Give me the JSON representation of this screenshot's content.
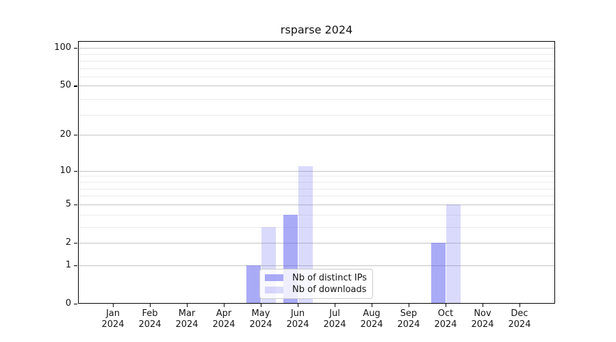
{
  "chart_data": {
    "type": "bar",
    "title": "rsparse 2024",
    "categories": [
      "Jan 2024",
      "Feb 2024",
      "Mar 2024",
      "Apr 2024",
      "May 2024",
      "Jun 2024",
      "Jul 2024",
      "Aug 2024",
      "Sep 2024",
      "Oct 2024",
      "Nov 2024",
      "Dec 2024"
    ],
    "series": [
      {
        "name": "Nb of distinct IPs",
        "values": [
          0,
          0,
          0,
          0,
          1,
          4,
          0,
          0,
          0,
          2,
          0,
          0
        ],
        "color": "rgba(85,88,240,0.5)"
      },
      {
        "name": "Nb of downloads",
        "values": [
          0,
          0,
          0,
          0,
          3,
          11,
          0,
          0,
          0,
          5,
          0,
          0
        ],
        "color": "rgba(85,88,240,0.22)"
      }
    ],
    "y_ticks": [
      0,
      1,
      2,
      5,
      10,
      20,
      50,
      100
    ],
    "minor_grid_values": [
      3,
      4,
      6,
      7,
      8,
      9,
      29,
      39,
      59,
      69,
      79,
      89
    ],
    "scale": "log1p",
    "ylim": [
      0,
      113
    ],
    "grid": true,
    "legend_position": "inside-bottom-center",
    "colors": {
      "major_grid": "#c3c3c3",
      "minor_grid": "#ebebeb",
      "bar_base": "#5558f0"
    }
  }
}
